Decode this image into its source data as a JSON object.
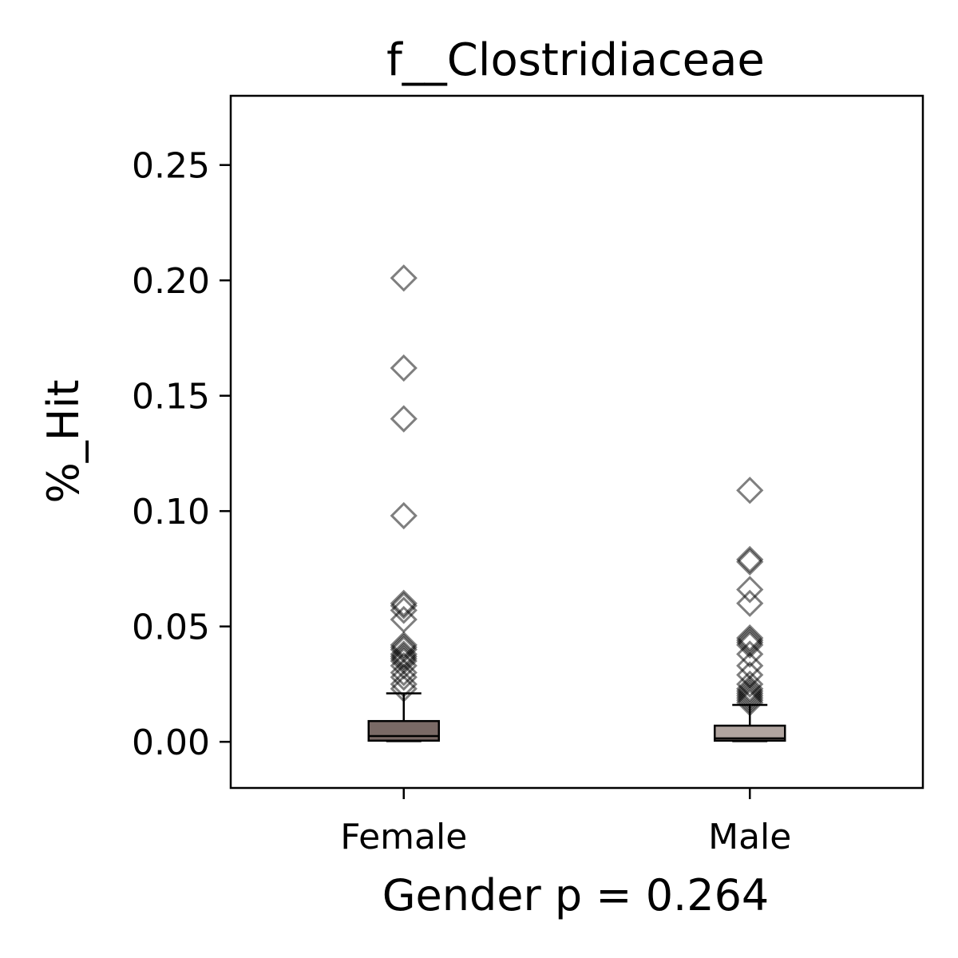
{
  "chart_data": {
    "type": "box",
    "title": "f__Clostridiaceae",
    "xlabel": "Gender p = 0.264",
    "ylabel": "%_Hit",
    "ylim": [
      -0.02,
      0.28
    ],
    "yticks": [
      0.0,
      0.05,
      0.1,
      0.15,
      0.2,
      0.25
    ],
    "ytick_labels": [
      "0.00",
      "0.05",
      "0.10",
      "0.15",
      "0.20",
      "0.25"
    ],
    "grid": false,
    "categories": [
      "Female",
      "Male"
    ],
    "series": [
      {
        "category": "Female",
        "color": "#7a6a66",
        "whisker_low": 0.0003,
        "q1": 0.0005,
        "median": 0.0025,
        "q3": 0.009,
        "whisker_high": 0.021,
        "outliers": [
          0.201,
          0.162,
          0.14,
          0.098,
          0.06,
          0.059,
          0.057,
          0.053,
          0.042,
          0.041,
          0.04,
          0.038,
          0.037,
          0.036,
          0.035,
          0.033,
          0.03,
          0.028,
          0.025,
          0.023
        ]
      },
      {
        "category": "Male",
        "color": "#b0a49f",
        "whisker_low": 0.0003,
        "q1": 0.0005,
        "median": 0.0015,
        "q3": 0.007,
        "whisker_high": 0.016,
        "outliers": [
          0.109,
          0.079,
          0.078,
          0.066,
          0.06,
          0.045,
          0.044,
          0.043,
          0.042,
          0.038,
          0.033,
          0.029,
          0.025,
          0.023,
          0.022,
          0.021,
          0.02,
          0.019,
          0.018,
          0.017
        ]
      }
    ]
  }
}
